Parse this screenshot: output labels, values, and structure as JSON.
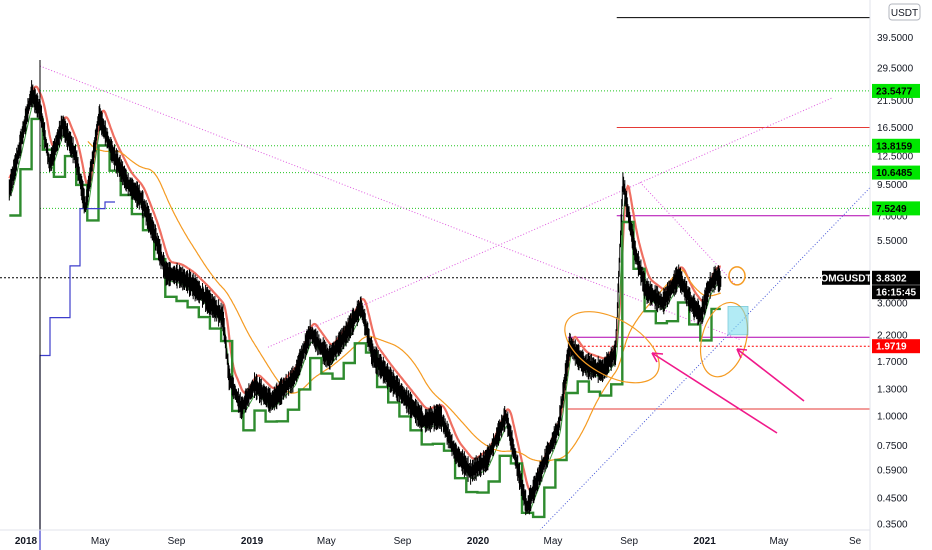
{
  "chart_data": {
    "type": "line",
    "symbol": "OMGUSDT",
    "currency_badge": "USDT",
    "y_scale": "log",
    "ylim": [
      0.33,
      57
    ],
    "x_range": [
      "2017-11-20",
      "2021-09-25"
    ],
    "y_tick_labels": [
      "39.5000",
      "29.5000",
      "21.5000",
      "16.5000",
      "12.5000",
      "9.5000",
      "7.0000",
      "5.5000",
      "3.8302",
      "3.0000",
      "2.2000",
      "1.7000",
      "1.3000",
      "1.0000",
      "0.7500",
      "0.5900",
      "0.4500",
      "0.3500"
    ],
    "x_tick_labels": [
      {
        "text": "2018",
        "date": "2018-01-01",
        "bold": true
      },
      {
        "text": "May",
        "date": "2018-05-01",
        "bold": false
      },
      {
        "text": "Sep",
        "date": "2018-09-01",
        "bold": false
      },
      {
        "text": "2019",
        "date": "2019-01-01",
        "bold": true
      },
      {
        "text": "May",
        "date": "2019-05-01",
        "bold": false
      },
      {
        "text": "Sep",
        "date": "2019-09-01",
        "bold": false
      },
      {
        "text": "2020",
        "date": "2020-01-01",
        "bold": true
      },
      {
        "text": "May",
        "date": "2020-05-01",
        "bold": false
      },
      {
        "text": "Sep",
        "date": "2020-09-01",
        "bold": false
      },
      {
        "text": "2021",
        "date": "2021-01-01",
        "bold": true
      },
      {
        "text": "May",
        "date": "2021-05-01",
        "bold": false
      },
      {
        "text": "Se",
        "date": "2021-09-01",
        "bold": false
      }
    ],
    "price_badges": [
      {
        "label": "",
        "value": "23.5477",
        "y": 23.55,
        "bg": "#00e600",
        "fg": "#000000"
      },
      {
        "label": "",
        "value": "13.8159",
        "y": 13.82,
        "bg": "#00e600",
        "fg": "#000000"
      },
      {
        "label": "",
        "value": "10.6485",
        "y": 10.65,
        "bg": "#00e600",
        "fg": "#000000"
      },
      {
        "label": "",
        "value": "7.5249",
        "y": 7.52,
        "bg": "#00e600",
        "fg": "#000000"
      },
      {
        "label": "OMGUSDT",
        "value": "3.8302",
        "y": 3.83,
        "bg": "#000000",
        "fg": "#ffffff"
      },
      {
        "label": "",
        "value": "16:15:45",
        "y": 3.33,
        "bg": "#000000",
        "fg": "#ffffff"
      },
      {
        "label": "",
        "value": "1.9719",
        "y": 1.97,
        "bg": "#ff0000",
        "fg": "#ffffff"
      }
    ],
    "price_anchors": [
      [
        "2017-12-05",
        9.0
      ],
      [
        "2017-12-20",
        13.0
      ],
      [
        "2018-01-10",
        23.0
      ],
      [
        "2018-01-25",
        19.0
      ],
      [
        "2018-02-08",
        11.5
      ],
      [
        "2018-03-01",
        17.0
      ],
      [
        "2018-03-22",
        12.5
      ],
      [
        "2018-04-07",
        7.6
      ],
      [
        "2018-04-29",
        18.5
      ],
      [
        "2018-05-20",
        13.0
      ],
      [
        "2018-06-15",
        9.5
      ],
      [
        "2018-07-05",
        8.3
      ],
      [
        "2018-07-28",
        5.8
      ],
      [
        "2018-08-15",
        4.0
      ],
      [
        "2018-09-05",
        3.9
      ],
      [
        "2018-09-25",
        3.6
      ],
      [
        "2018-10-20",
        3.1
      ],
      [
        "2018-11-15",
        2.6
      ],
      [
        "2018-11-25",
        1.45
      ],
      [
        "2018-12-15",
        1.08
      ],
      [
        "2019-01-05",
        1.35
      ],
      [
        "2019-02-01",
        1.15
      ],
      [
        "2019-03-10",
        1.45
      ],
      [
        "2019-04-05",
        2.25
      ],
      [
        "2019-05-05",
        1.75
      ],
      [
        "2019-06-01",
        2.2
      ],
      [
        "2019-06-26",
        2.9
      ],
      [
        "2019-07-15",
        1.8
      ],
      [
        "2019-08-10",
        1.45
      ],
      [
        "2019-09-10",
        1.15
      ],
      [
        "2019-10-05",
        0.95
      ],
      [
        "2019-11-01",
        1.0
      ],
      [
        "2019-11-25",
        0.7
      ],
      [
        "2019-12-20",
        0.58
      ],
      [
        "2020-01-15",
        0.65
      ],
      [
        "2020-02-15",
        1.0
      ],
      [
        "2020-03-12",
        0.5
      ],
      [
        "2020-03-20",
        0.41
      ],
      [
        "2020-04-15",
        0.62
      ],
      [
        "2020-05-10",
        0.9
      ],
      [
        "2020-05-28",
        2.0
      ],
      [
        "2020-06-20",
        1.65
      ],
      [
        "2020-07-20",
        1.55
      ],
      [
        "2020-08-10",
        1.85
      ],
      [
        "2020-08-22",
        9.7
      ],
      [
        "2020-09-10",
        5.0
      ],
      [
        "2020-09-28",
        3.4
      ],
      [
        "2020-10-25",
        3.0
      ],
      [
        "2020-11-20",
        3.9
      ],
      [
        "2020-12-10",
        3.0
      ],
      [
        "2020-12-26",
        2.65
      ],
      [
        "2021-01-08",
        3.5
      ],
      [
        "2021-01-20",
        3.9
      ],
      [
        "2021-01-27",
        3.7
      ]
    ],
    "green_levels": [
      23.55,
      13.82,
      10.65,
      7.52
    ],
    "black_levels": [
      {
        "from": "2020-08-12",
        "to": "2021-09-25",
        "y": 48.0
      },
      {
        "from": "2017-11-20",
        "to": "2021-09-25",
        "y": 3.83
      }
    ],
    "red_levels": [
      {
        "from": "2020-08-12",
        "to": "2021-09-25",
        "y": 16.5
      },
      {
        "from": "2020-05-25",
        "to": "2021-09-25",
        "y": 1.07
      }
    ],
    "purple_levels": [
      {
        "from": "2020-08-12",
        "to": "2021-09-25",
        "y": 7.0
      },
      {
        "from": "2020-05-25",
        "to": "2021-09-25",
        "y": 2.15
      }
    ]
  }
}
